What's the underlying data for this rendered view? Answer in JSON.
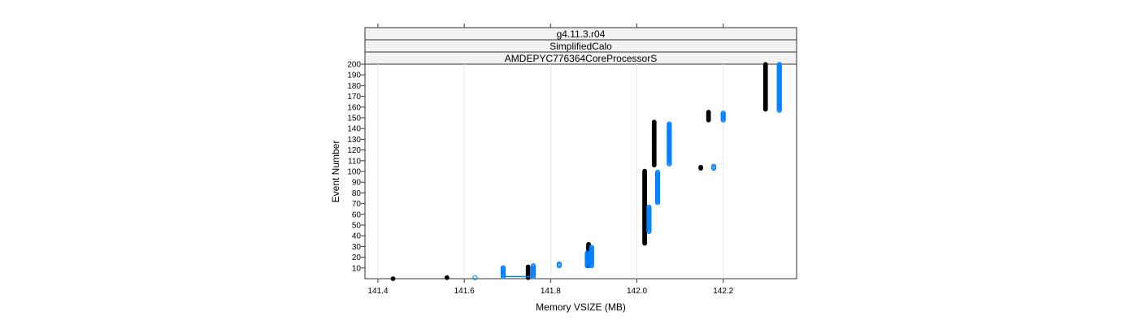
{
  "chart_data": {
    "type": "scatter",
    "panel": {
      "strips": [
        "g4.11.3.r04",
        "SimplifiedCalo",
        "AMDEPYC776364CoreProcessorS"
      ]
    },
    "xlabel": "Memory VSIZE (MB)",
    "ylabel": "Event Number",
    "xlim": [
      141.37,
      142.37
    ],
    "ylim": [
      0,
      200
    ],
    "x_ticks": [
      "141.4",
      "141.6",
      "141.8",
      "142.0",
      "142.2"
    ],
    "y_ticks": [
      "10",
      "20",
      "30",
      "40",
      "50",
      "60",
      "70",
      "80",
      "90",
      "100",
      "110",
      "120",
      "130",
      "140",
      "150",
      "160",
      "170",
      "180",
      "190",
      "200"
    ],
    "grid": true,
    "colors": {
      "black_series": "#000000",
      "blue_series": "#0080ff"
    },
    "series": [
      {
        "color_key": "black_series",
        "marker": "filled-circle",
        "segments": [
          {
            "x": 141.435,
            "y_from": 0,
            "y_to": 0
          },
          {
            "x": 141.56,
            "y_from": 1,
            "y_to": 1
          },
          {
            "x": 141.748,
            "y_from": 1,
            "y_to": 11
          },
          {
            "x": 141.888,
            "y_from": 12,
            "y_to": 32
          },
          {
            "x": 142.018,
            "y_from": 33,
            "y_to": 101
          },
          {
            "x": 142.04,
            "y_from": 106,
            "y_to": 146
          },
          {
            "x": 142.148,
            "y_from": 103,
            "y_to": 104
          },
          {
            "x": 142.166,
            "y_from": 148,
            "y_to": 156
          },
          {
            "x": 142.298,
            "y_from": 158,
            "y_to": 200
          }
        ]
      },
      {
        "color_key": "blue_series",
        "marker": "open-circle",
        "segments": [
          {
            "x": 141.625,
            "y_from": 1,
            "y_to": 1
          },
          {
            "x": 141.69,
            "y_from": 2,
            "y_to": 11
          },
          {
            "x": 141.76,
            "y_from": 2,
            "y_to": 12
          },
          {
            "x": 141.82,
            "y_from": 12,
            "y_to": 14
          },
          {
            "x": 141.885,
            "y_from": 12,
            "y_to": 24
          },
          {
            "x": 141.895,
            "y_from": 12,
            "y_to": 30
          },
          {
            "x": 142.028,
            "y_from": 44,
            "y_to": 67
          },
          {
            "x": 142.048,
            "y_from": 71,
            "y_to": 100
          },
          {
            "x": 142.075,
            "y_from": 107,
            "y_to": 145
          },
          {
            "x": 142.178,
            "y_from": 103,
            "y_to": 105
          },
          {
            "x": 142.2,
            "y_from": 148,
            "y_to": 155
          },
          {
            "x": 142.33,
            "y_from": 157,
            "y_to": 200
          }
        ],
        "connectors": [
          {
            "x_from": 141.69,
            "x_to": 141.76,
            "y": 2
          }
        ]
      }
    ]
  }
}
